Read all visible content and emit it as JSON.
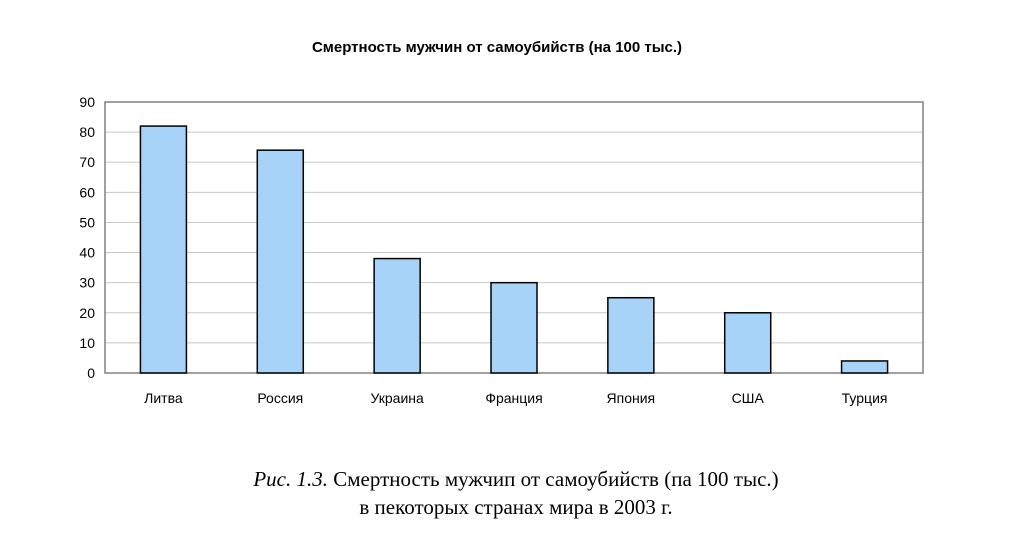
{
  "chart_data": {
    "type": "bar",
    "title": "Смертность мужчин от самоубийств (на 100 тыс.)",
    "categories": [
      "Литва",
      "Россия",
      "Украина",
      "Франция",
      "Япония",
      "США",
      "Турция"
    ],
    "values": [
      82,
      74,
      38,
      30,
      25,
      20,
      4
    ],
    "ylim": [
      0,
      90
    ],
    "yticks": [
      0,
      10,
      20,
      30,
      40,
      50,
      60,
      70,
      80,
      90
    ],
    "grid": true,
    "legend": "none",
    "colors": {
      "bar_fill": "#a6d3f7",
      "bar_stroke": "#000000",
      "grid": "#c8c8c8",
      "plot_border": "#808080"
    }
  },
  "caption": {
    "prefix": "Рис. 1.3.",
    "line1": "Смертность мужчип от самоубийств (па 100 тыс.)",
    "line2": "в пекоторых странах мира в 2003 г."
  }
}
